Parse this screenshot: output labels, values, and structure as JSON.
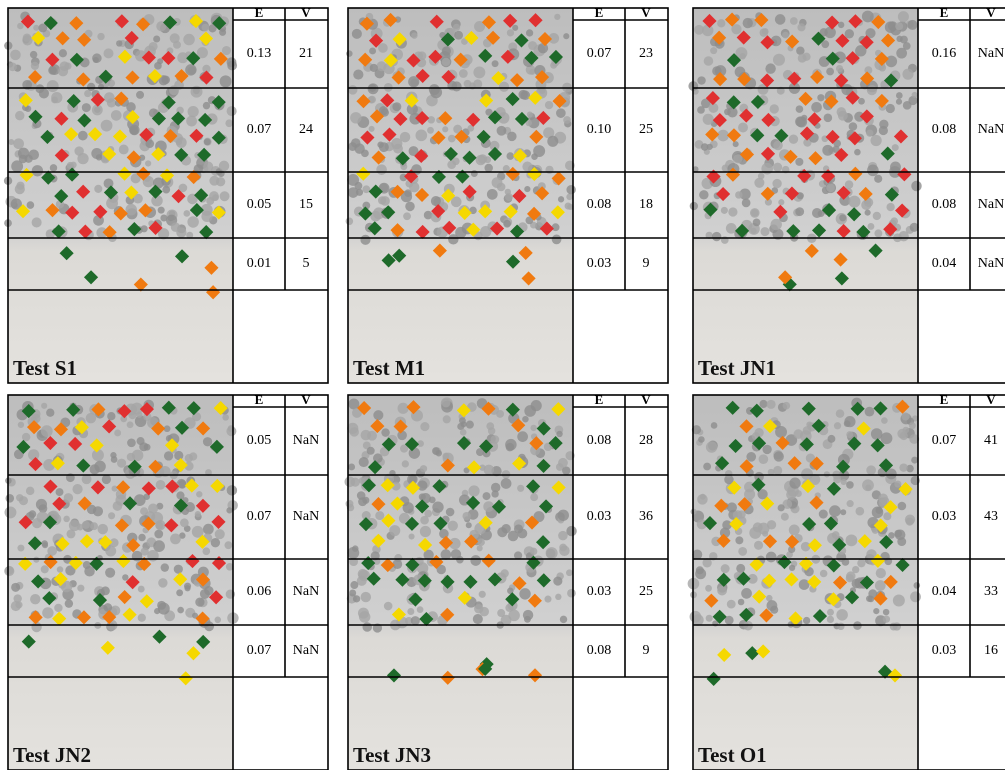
{
  "panels": [
    {
      "title": "Test S1",
      "header": [
        "E",
        "V"
      ],
      "rows": [
        [
          "0.13",
          "21"
        ],
        [
          "0.07",
          "24"
        ],
        [
          "0.05",
          "15"
        ],
        [
          "0.01",
          "5"
        ]
      ]
    },
    {
      "title": "Test M1",
      "header": [
        "E",
        "V"
      ],
      "rows": [
        [
          "0.07",
          "23"
        ],
        [
          "0.10",
          "25"
        ],
        [
          "0.08",
          "18"
        ],
        [
          "0.03",
          "9"
        ]
      ]
    },
    {
      "title": "Test JN1",
      "header": [
        "E",
        "V"
      ],
      "rows": [
        [
          "0.16",
          "NaN"
        ],
        [
          "0.08",
          "NaN"
        ],
        [
          "0.08",
          "NaN"
        ],
        [
          "0.04",
          "NaN"
        ]
      ]
    },
    {
      "title": "Test JN2",
      "header": [
        "E",
        "V"
      ],
      "rows": [
        [
          "0.05",
          "NaN"
        ],
        [
          "0.07",
          "NaN"
        ],
        [
          "0.06",
          "NaN"
        ],
        [
          "0.07",
          "NaN"
        ]
      ]
    },
    {
      "title": "Test JN3",
      "header": [
        "E",
        "V"
      ],
      "rows": [
        [
          "0.08",
          "28"
        ],
        [
          "0.03",
          "36"
        ],
        [
          "0.03",
          "25"
        ],
        [
          "0.08",
          "9"
        ]
      ]
    },
    {
      "title": "Test O1",
      "header": [
        "E",
        "V"
      ],
      "rows": [
        [
          "0.07",
          "41"
        ],
        [
          "0.03",
          "43"
        ],
        [
          "0.04",
          "33"
        ],
        [
          "0.03",
          "16"
        ]
      ]
    }
  ]
}
